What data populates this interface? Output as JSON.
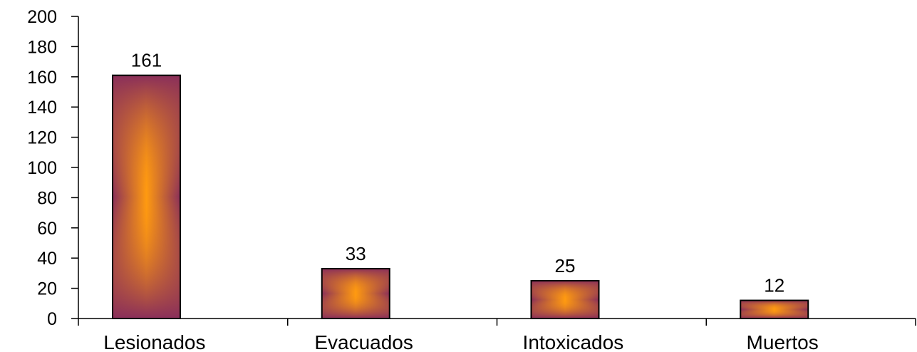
{
  "chart_data": {
    "type": "bar",
    "categories": [
      "Lesionados",
      "Evacuados",
      "Intoxicados",
      "Muertos"
    ],
    "values": [
      161,
      33,
      25,
      12
    ],
    "data_labels": [
      "161",
      "33",
      "25",
      "12"
    ],
    "title": "",
    "xlabel": "",
    "ylabel": "",
    "ylim": [
      0,
      200
    ],
    "yticks": [
      0,
      20,
      40,
      60,
      80,
      100,
      120,
      140,
      160,
      180,
      200
    ],
    "ytick_labels": [
      "0",
      "20",
      "40",
      "60",
      "80",
      "100",
      "120",
      "140",
      "160",
      "180",
      "200"
    ],
    "grid": false,
    "legend": "none",
    "colors": {
      "bar_edge": "#8a2f5a",
      "bar_center": "#ff9a10",
      "outline": "#000000",
      "axis": "#000000"
    }
  }
}
